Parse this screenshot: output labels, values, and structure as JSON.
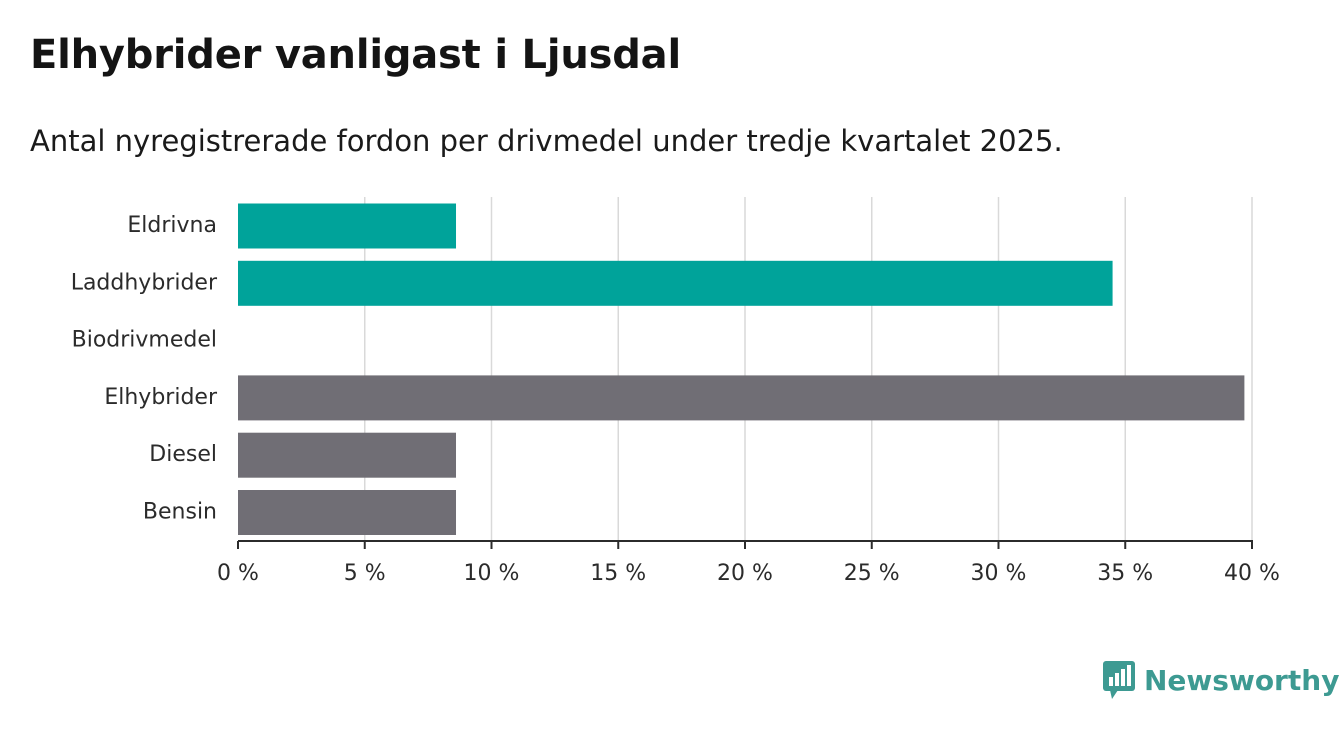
{
  "header": {
    "title": "Elhybrider vanligast i Ljusdal",
    "subtitle": "Antal nyregistrerade fordon per drivmedel under tredje kvartalet 2025."
  },
  "chart_data": {
    "type": "bar",
    "orientation": "horizontal",
    "title": "Elhybrider vanligast i Ljusdal",
    "subtitle": "Antal nyregistrerade fordon per drivmedel under tredje kvartalet 2025.",
    "xlabel": "",
    "ylabel": "",
    "xlim": [
      0,
      40
    ],
    "x_ticks": [
      0,
      5,
      10,
      15,
      20,
      25,
      30,
      35,
      40
    ],
    "x_tick_labels": [
      "0 %",
      "5 %",
      "10 %",
      "15 %",
      "20 %",
      "25 %",
      "30 %",
      "35 %",
      "40 %"
    ],
    "grid": true,
    "categories": [
      "Eldrivna",
      "Laddhybrider",
      "Biodrivmedel",
      "Elhybrider",
      "Diesel",
      "Bensin"
    ],
    "values": [
      8.6,
      34.5,
      0,
      39.7,
      8.6,
      8.6
    ],
    "bar_colors": [
      "#00a39a",
      "#00a39a",
      "#00a39a",
      "#706e75",
      "#706e75",
      "#706e75"
    ],
    "gridline_color": "#d9d9d9",
    "axis_color": "#2b2b2b"
  },
  "brand": {
    "name": "Newsworthy",
    "color": "#3d9a92",
    "icon": "newsworthy-logo-icon"
  }
}
